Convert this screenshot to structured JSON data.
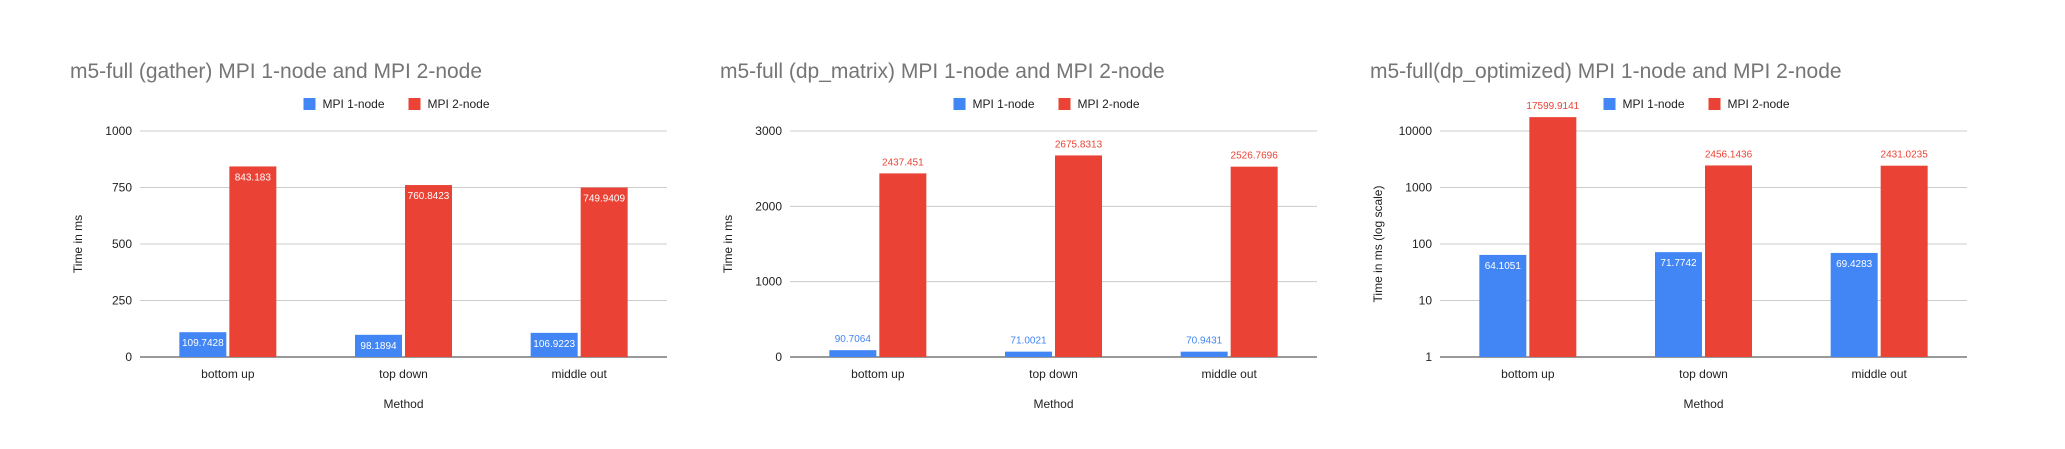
{
  "chart_data": [
    {
      "type": "bar",
      "scale": "linear",
      "title": "m5-full (gather) MPI 1-node and MPI 2-node",
      "xlabel": "Method",
      "ylabel": "Time in ms",
      "categories": [
        "bottom up",
        "top down",
        "middle out"
      ],
      "yticks": [
        "0",
        "250",
        "500",
        "750",
        "1000"
      ],
      "ylim": [
        0,
        1000
      ],
      "series": [
        {
          "name": "MPI 1-node",
          "color": "#4285f4",
          "values": [
            109.7428,
            98.1894,
            106.9223
          ],
          "labels": [
            "109.7428",
            "98.1894",
            "106.9223"
          ]
        },
        {
          "name": "MPI 2-node",
          "color": "#ea4335",
          "values": [
            843.183,
            760.8423,
            749.9409
          ],
          "labels": [
            "843.183",
            "760.8423",
            "749.9409"
          ]
        }
      ],
      "label_position": "inside",
      "legend": "top",
      "grid": true
    },
    {
      "type": "bar",
      "scale": "linear",
      "title": "m5-full (dp_matrix) MPI 1-node and MPI 2-node",
      "xlabel": "Method",
      "ylabel": "Time in ms",
      "categories": [
        "bottom up",
        "top down",
        "middle out"
      ],
      "yticks": [
        "0",
        "1000",
        "2000",
        "3000"
      ],
      "ylim": [
        0,
        3000
      ],
      "series": [
        {
          "name": "MPI 1-node",
          "color": "#4285f4",
          "values": [
            90.7064,
            71.0021,
            70.9431
          ],
          "labels": [
            "90.7064",
            "71.0021",
            "70.9431"
          ]
        },
        {
          "name": "MPI 2-node",
          "color": "#ea4335",
          "values": [
            2437.451,
            2675.8313,
            2526.7696
          ],
          "labels": [
            "2437.451",
            "2675.8313",
            "2526.7696"
          ]
        }
      ],
      "label_position": "mixed",
      "legend": "top",
      "grid": true
    },
    {
      "type": "bar",
      "scale": "log",
      "title": "m5-full(dp_optimized) MPI 1-node and MPI 2-node",
      "xlabel": "Method",
      "ylabel": "Time in ms (log scale)",
      "categories": [
        "bottom up",
        "top down",
        "middle out"
      ],
      "yticks": [
        "1",
        "10",
        "100",
        "1000",
        "10000"
      ],
      "ylim": [
        1,
        30000
      ],
      "series": [
        {
          "name": "MPI 1-node",
          "color": "#4285f4",
          "values": [
            64.1051,
            71.7742,
            69.4283
          ],
          "labels": [
            "64.1051",
            "71.7742",
            "69.4283"
          ]
        },
        {
          "name": "MPI 2-node",
          "color": "#ea4335",
          "values": [
            17599.9141,
            2456.1436,
            2431.0235
          ],
          "labels": [
            "17599.9141",
            "2456.1436",
            "2431.0235"
          ]
        }
      ],
      "label_position": "mixed",
      "legend": "top",
      "grid": true
    }
  ]
}
